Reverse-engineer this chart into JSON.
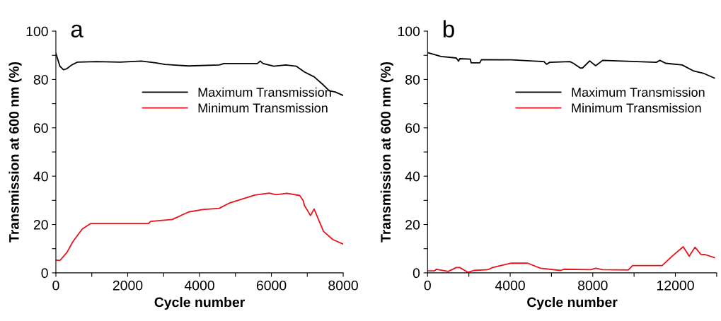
{
  "chart_data": [
    {
      "type": "line",
      "annotations": [
        "a"
      ],
      "xlabel": "Cycle number",
      "ylabel": "Transmission at 600 nm (%)",
      "xlim": [
        0,
        8000
      ],
      "ylim": [
        0,
        100
      ],
      "xticks": [
        0,
        {
          "value": 1000,
          "label": null
        },
        2000,
        {
          "value": 3000,
          "label": null
        },
        4000,
        {
          "value": 5000,
          "label": null
        },
        6000,
        {
          "value": 7000,
          "label": null
        },
        8000
      ],
      "yticks": [
        0,
        {
          "value": 10,
          "label": null
        },
        20,
        {
          "value": 30,
          "label": null
        },
        40,
        {
          "value": 50,
          "label": null
        },
        60,
        {
          "value": 70,
          "label": null
        },
        80,
        {
          "value": 90,
          "label": null
        },
        100
      ],
      "legend": "right",
      "grid": false,
      "series": [
        {
          "name": "Maximum Transmission",
          "color": "#000000",
          "x": [
            0,
            112,
            210,
            309,
            441,
            605,
            1130,
            1790,
            2380,
            2780,
            3040,
            3700,
            4550,
            4680,
            5610,
            5690,
            5770,
            6070,
            6400,
            6690,
            6920,
            7190,
            7450,
            7610,
            7780,
            8000
          ],
          "values": [
            90.8,
            85.5,
            84.0,
            84.5,
            86.0,
            87.2,
            87.4,
            87.2,
            87.6,
            86.9,
            86.2,
            85.6,
            86.0,
            86.6,
            86.6,
            87.6,
            86.6,
            85.5,
            86.0,
            85.5,
            83.1,
            81.1,
            77.7,
            75.3,
            74.8,
            73.4
          ]
        },
        {
          "name": "Minimum Transmission",
          "color": "#e8141c",
          "x": [
            0,
            112,
            309,
            474,
            737,
            967,
            2580,
            2640,
            3240,
            3700,
            4090,
            4550,
            4820,
            5540,
            5940,
            6130,
            6430,
            6790,
            6890,
            6920,
            7090,
            7190,
            7450,
            7710,
            8000
          ],
          "values": [
            5.3,
            5.1,
            8.5,
            12.9,
            18.2,
            20.4,
            20.4,
            21.3,
            22.1,
            25.2,
            26.2,
            26.7,
            28.8,
            32.2,
            33.0,
            32.3,
            32.9,
            32.0,
            29.8,
            27.9,
            23.7,
            26.4,
            17.2,
            13.8,
            11.9
          ]
        }
      ]
    },
    {
      "type": "line",
      "annotations": [
        "b"
      ],
      "xlabel": "Cycle number",
      "ylabel": "Transmission at 600 nm (%)",
      "xlim": [
        0,
        14000
      ],
      "ylim": [
        0,
        100
      ],
      "xticks": [
        0,
        {
          "value": 2000,
          "label": null
        },
        4000,
        {
          "value": 6000,
          "label": null
        },
        8000,
        {
          "value": 10000,
          "label": null
        },
        12000,
        {
          "value": 14000,
          "label": null
        }
      ],
      "yticks": [
        0,
        {
          "value": 10,
          "label": null
        },
        20,
        {
          "value": 30,
          "label": null
        },
        40,
        {
          "value": 50,
          "label": null
        },
        60,
        {
          "value": 70,
          "label": null
        },
        80,
        {
          "value": 90,
          "label": null
        },
        100
      ],
      "legend": "right",
      "grid": false,
      "series": [
        {
          "name": "Maximum Transmission",
          "color": "#000000",
          "x": [
            0,
            657,
            1390,
            1500,
            1560,
            2070,
            2110,
            2530,
            2610,
            4060,
            5640,
            5760,
            5920,
            6890,
            7060,
            7400,
            7510,
            7850,
            8140,
            8480,
            11080,
            11250,
            11530,
            12330,
            12890,
            13350,
            13890
          ],
          "values": [
            91.1,
            89.5,
            88.9,
            87.6,
            88.6,
            88.4,
            86.9,
            86.9,
            88.2,
            88.1,
            87.4,
            86.3,
            87.1,
            87.4,
            86.7,
            84.7,
            84.8,
            87.7,
            85.7,
            87.9,
            87.1,
            87.9,
            86.7,
            86.0,
            83.5,
            82.6,
            80.6
          ]
        },
        {
          "name": "Minimum Transmission",
          "color": "#e8141c",
          "x": [
            0,
            320,
            430,
            1000,
            1390,
            1560,
            1960,
            2240,
            2920,
            3150,
            3720,
            4060,
            4850,
            5470,
            6440,
            6610,
            7910,
            8140,
            8480,
            9720,
            9930,
            11360,
            11870,
            12380,
            12670,
            12950,
            13230,
            13460,
            13890
          ],
          "values": [
            0.8,
            0.8,
            1.5,
            0.6,
            2.2,
            2.2,
            0.2,
            1.0,
            1.3,
            2.2,
            3.4,
            4.0,
            4.0,
            1.9,
            1.0,
            1.5,
            1.3,
            1.9,
            1.3,
            1.2,
            3.0,
            3.0,
            7.1,
            10.8,
            6.9,
            10.6,
            7.7,
            7.5,
            6.3
          ]
        }
      ]
    }
  ]
}
